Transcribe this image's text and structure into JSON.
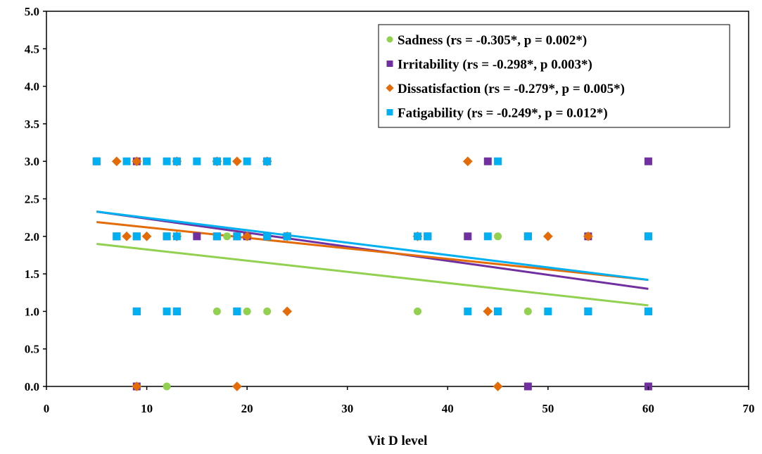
{
  "chart_data": {
    "type": "scatter",
    "title": "",
    "xlabel": "Vit D level",
    "ylabel": "",
    "xlim": [
      0,
      70
    ],
    "ylim": [
      0,
      5
    ],
    "x_ticks": [
      0,
      10,
      20,
      30,
      40,
      50,
      60,
      70
    ],
    "y_ticks": [
      0,
      0.5,
      1.0,
      1.5,
      2.0,
      2.5,
      3.0,
      3.5,
      4.0,
      4.5,
      5.0
    ],
    "y_tick_labels": [
      "0.0",
      "0.5",
      "1.0",
      "1.5",
      "2.0",
      "2.5",
      "3.0",
      "3.5",
      "4.0",
      "4.5",
      "5.0"
    ],
    "x_tick_labels": [
      "0",
      "10",
      "20",
      "30",
      "40",
      "50",
      "60",
      "70"
    ],
    "grid": false,
    "legend_position": "top-right",
    "series": [
      {
        "name": "Sadness (rs = -0.305*, p = 0.002*)",
        "marker": "circle",
        "color": "#92d050",
        "trend": [
          [
            5,
            1.9
          ],
          [
            60,
            1.08
          ]
        ],
        "points": [
          [
            5,
            3
          ],
          [
            9,
            3
          ],
          [
            13,
            3
          ],
          [
            15,
            3
          ],
          [
            17,
            3
          ],
          [
            22,
            3
          ],
          [
            7,
            2
          ],
          [
            9,
            2
          ],
          [
            12,
            2
          ],
          [
            13,
            2
          ],
          [
            17,
            2
          ],
          [
            18,
            2
          ],
          [
            19,
            2
          ],
          [
            20,
            2
          ],
          [
            24,
            2
          ],
          [
            37,
            2
          ],
          [
            38,
            2
          ],
          [
            45,
            2
          ],
          [
            48,
            2
          ],
          [
            54,
            2
          ],
          [
            60,
            2
          ],
          [
            9,
            1
          ],
          [
            12,
            1
          ],
          [
            13,
            1
          ],
          [
            17,
            1
          ],
          [
            19,
            1
          ],
          [
            20,
            1
          ],
          [
            22,
            1
          ],
          [
            37,
            1
          ],
          [
            45,
            1
          ],
          [
            48,
            1
          ],
          [
            50,
            1
          ],
          [
            54,
            1
          ],
          [
            60,
            1
          ],
          [
            9,
            0
          ],
          [
            12,
            0
          ]
        ]
      },
      {
        "name": "Irritability (rs = -0.298*, p 0.003*)",
        "marker": "square",
        "color": "#7030a0",
        "trend": [
          [
            5,
            2.33
          ],
          [
            60,
            1.3
          ]
        ],
        "points": [
          [
            5,
            3
          ],
          [
            9,
            3
          ],
          [
            13,
            3
          ],
          [
            17,
            3
          ],
          [
            22,
            3
          ],
          [
            44,
            3
          ],
          [
            60,
            3
          ],
          [
            7,
            2
          ],
          [
            9,
            2
          ],
          [
            12,
            2
          ],
          [
            15,
            2
          ],
          [
            17,
            2
          ],
          [
            19,
            2
          ],
          [
            20,
            2
          ],
          [
            22,
            2
          ],
          [
            24,
            2
          ],
          [
            38,
            2
          ],
          [
            42,
            2
          ],
          [
            48,
            2
          ],
          [
            54,
            2
          ],
          [
            60,
            2
          ],
          [
            9,
            1
          ],
          [
            13,
            1
          ],
          [
            19,
            1
          ],
          [
            45,
            1
          ],
          [
            54,
            1
          ],
          [
            60,
            1
          ],
          [
            9,
            0
          ],
          [
            48,
            0
          ],
          [
            60,
            0
          ]
        ]
      },
      {
        "name": "Dissatisfaction (rs = -0.279*, p = 0.005*)",
        "marker": "diamond",
        "color": "#e36c09",
        "trend": [
          [
            5,
            2.19
          ],
          [
            60,
            1.42
          ]
        ],
        "points": [
          [
            7,
            3
          ],
          [
            9,
            3
          ],
          [
            13,
            3
          ],
          [
            17,
            3
          ],
          [
            19,
            3
          ],
          [
            22,
            3
          ],
          [
            42,
            3
          ],
          [
            8,
            2
          ],
          [
            10,
            2
          ],
          [
            13,
            2
          ],
          [
            20,
            2
          ],
          [
            24,
            2
          ],
          [
            37,
            2
          ],
          [
            50,
            2
          ],
          [
            54,
            2
          ],
          [
            24,
            1
          ],
          [
            44,
            1
          ],
          [
            9,
            0
          ],
          [
            19,
            0
          ],
          [
            45,
            0
          ]
        ]
      },
      {
        "name": "Fatigability (rs = -0.249*, p = 0.012*)",
        "marker": "square",
        "color": "#00b0f0",
        "trend": [
          [
            5,
            2.33
          ],
          [
            60,
            1.42
          ]
        ],
        "points": [
          [
            5,
            3
          ],
          [
            8,
            3
          ],
          [
            10,
            3
          ],
          [
            12,
            3
          ],
          [
            13,
            3
          ],
          [
            15,
            3
          ],
          [
            17,
            3
          ],
          [
            18,
            3
          ],
          [
            20,
            3
          ],
          [
            22,
            3
          ],
          [
            45,
            3
          ],
          [
            7,
            2
          ],
          [
            9,
            2
          ],
          [
            12,
            2
          ],
          [
            13,
            2
          ],
          [
            17,
            2
          ],
          [
            19,
            2
          ],
          [
            22,
            2
          ],
          [
            24,
            2
          ],
          [
            37,
            2
          ],
          [
            38,
            2
          ],
          [
            44,
            2
          ],
          [
            48,
            2
          ],
          [
            60,
            2
          ],
          [
            9,
            1
          ],
          [
            12,
            1
          ],
          [
            13,
            1
          ],
          [
            19,
            1
          ],
          [
            42,
            1
          ],
          [
            45,
            1
          ],
          [
            50,
            1
          ],
          [
            54,
            1
          ],
          [
            60,
            1
          ]
        ]
      }
    ]
  }
}
